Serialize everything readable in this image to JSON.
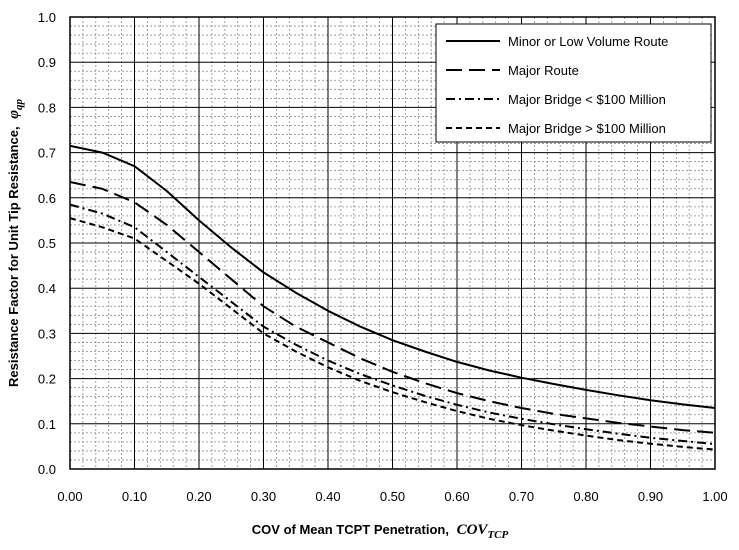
{
  "chart_data": {
    "type": "line",
    "title": "",
    "xlabel": "COV of Mean TCPT Penetration,",
    "xlabel_symbol": "COV",
    "xlabel_subscript": "TCP",
    "ylabel": "Resistance Factor for Unit Tip Resistance,",
    "ylabel_symbol": "φ",
    "ylabel_subscript": "qp",
    "xlim": [
      0,
      1
    ],
    "ylim": [
      0,
      1
    ],
    "x_ticks": [
      "0.00",
      "0.10",
      "0.20",
      "0.30",
      "0.40",
      "0.50",
      "0.60",
      "0.70",
      "0.80",
      "0.90",
      "1.00"
    ],
    "y_ticks": [
      "0.0",
      "0.1",
      "0.2",
      "0.3",
      "0.4",
      "0.5",
      "0.6",
      "0.7",
      "0.8",
      "0.9",
      "1.0"
    ],
    "grid": true,
    "legend_position": "top-right",
    "x": [
      0,
      0.05,
      0.1,
      0.15,
      0.2,
      0.25,
      0.3,
      0.35,
      0.4,
      0.45,
      0.5,
      0.55,
      0.6,
      0.65,
      0.7,
      0.75,
      0.8,
      0.85,
      0.9,
      0.95,
      1.0
    ],
    "series": [
      {
        "name": "Minor or Low Volume Route",
        "style": "solid",
        "values": [
          0.715,
          0.7,
          0.67,
          0.615,
          0.55,
          0.49,
          0.435,
          0.39,
          0.35,
          0.315,
          0.285,
          0.26,
          0.237,
          0.218,
          0.202,
          0.188,
          0.175,
          0.163,
          0.152,
          0.143,
          0.135
        ]
      },
      {
        "name": "Major Route",
        "style": "long-dash",
        "values": [
          0.635,
          0.62,
          0.59,
          0.54,
          0.48,
          0.42,
          0.36,
          0.315,
          0.28,
          0.245,
          0.215,
          0.19,
          0.168,
          0.15,
          0.135,
          0.122,
          0.112,
          0.102,
          0.094,
          0.086,
          0.08
        ]
      },
      {
        "name": "Major Bridge < $100 Million",
        "style": "dash-dot",
        "values": [
          0.585,
          0.565,
          0.535,
          0.48,
          0.425,
          0.37,
          0.315,
          0.275,
          0.24,
          0.21,
          0.185,
          0.162,
          0.142,
          0.125,
          0.111,
          0.099,
          0.088,
          0.078,
          0.069,
          0.062,
          0.055
        ]
      },
      {
        "name": "Major Bridge > $100 Million",
        "style": "short-dash",
        "values": [
          0.555,
          0.535,
          0.51,
          0.46,
          0.41,
          0.355,
          0.3,
          0.26,
          0.225,
          0.195,
          0.17,
          0.148,
          0.128,
          0.111,
          0.097,
          0.085,
          0.074,
          0.064,
          0.056,
          0.049,
          0.043
        ]
      }
    ]
  }
}
